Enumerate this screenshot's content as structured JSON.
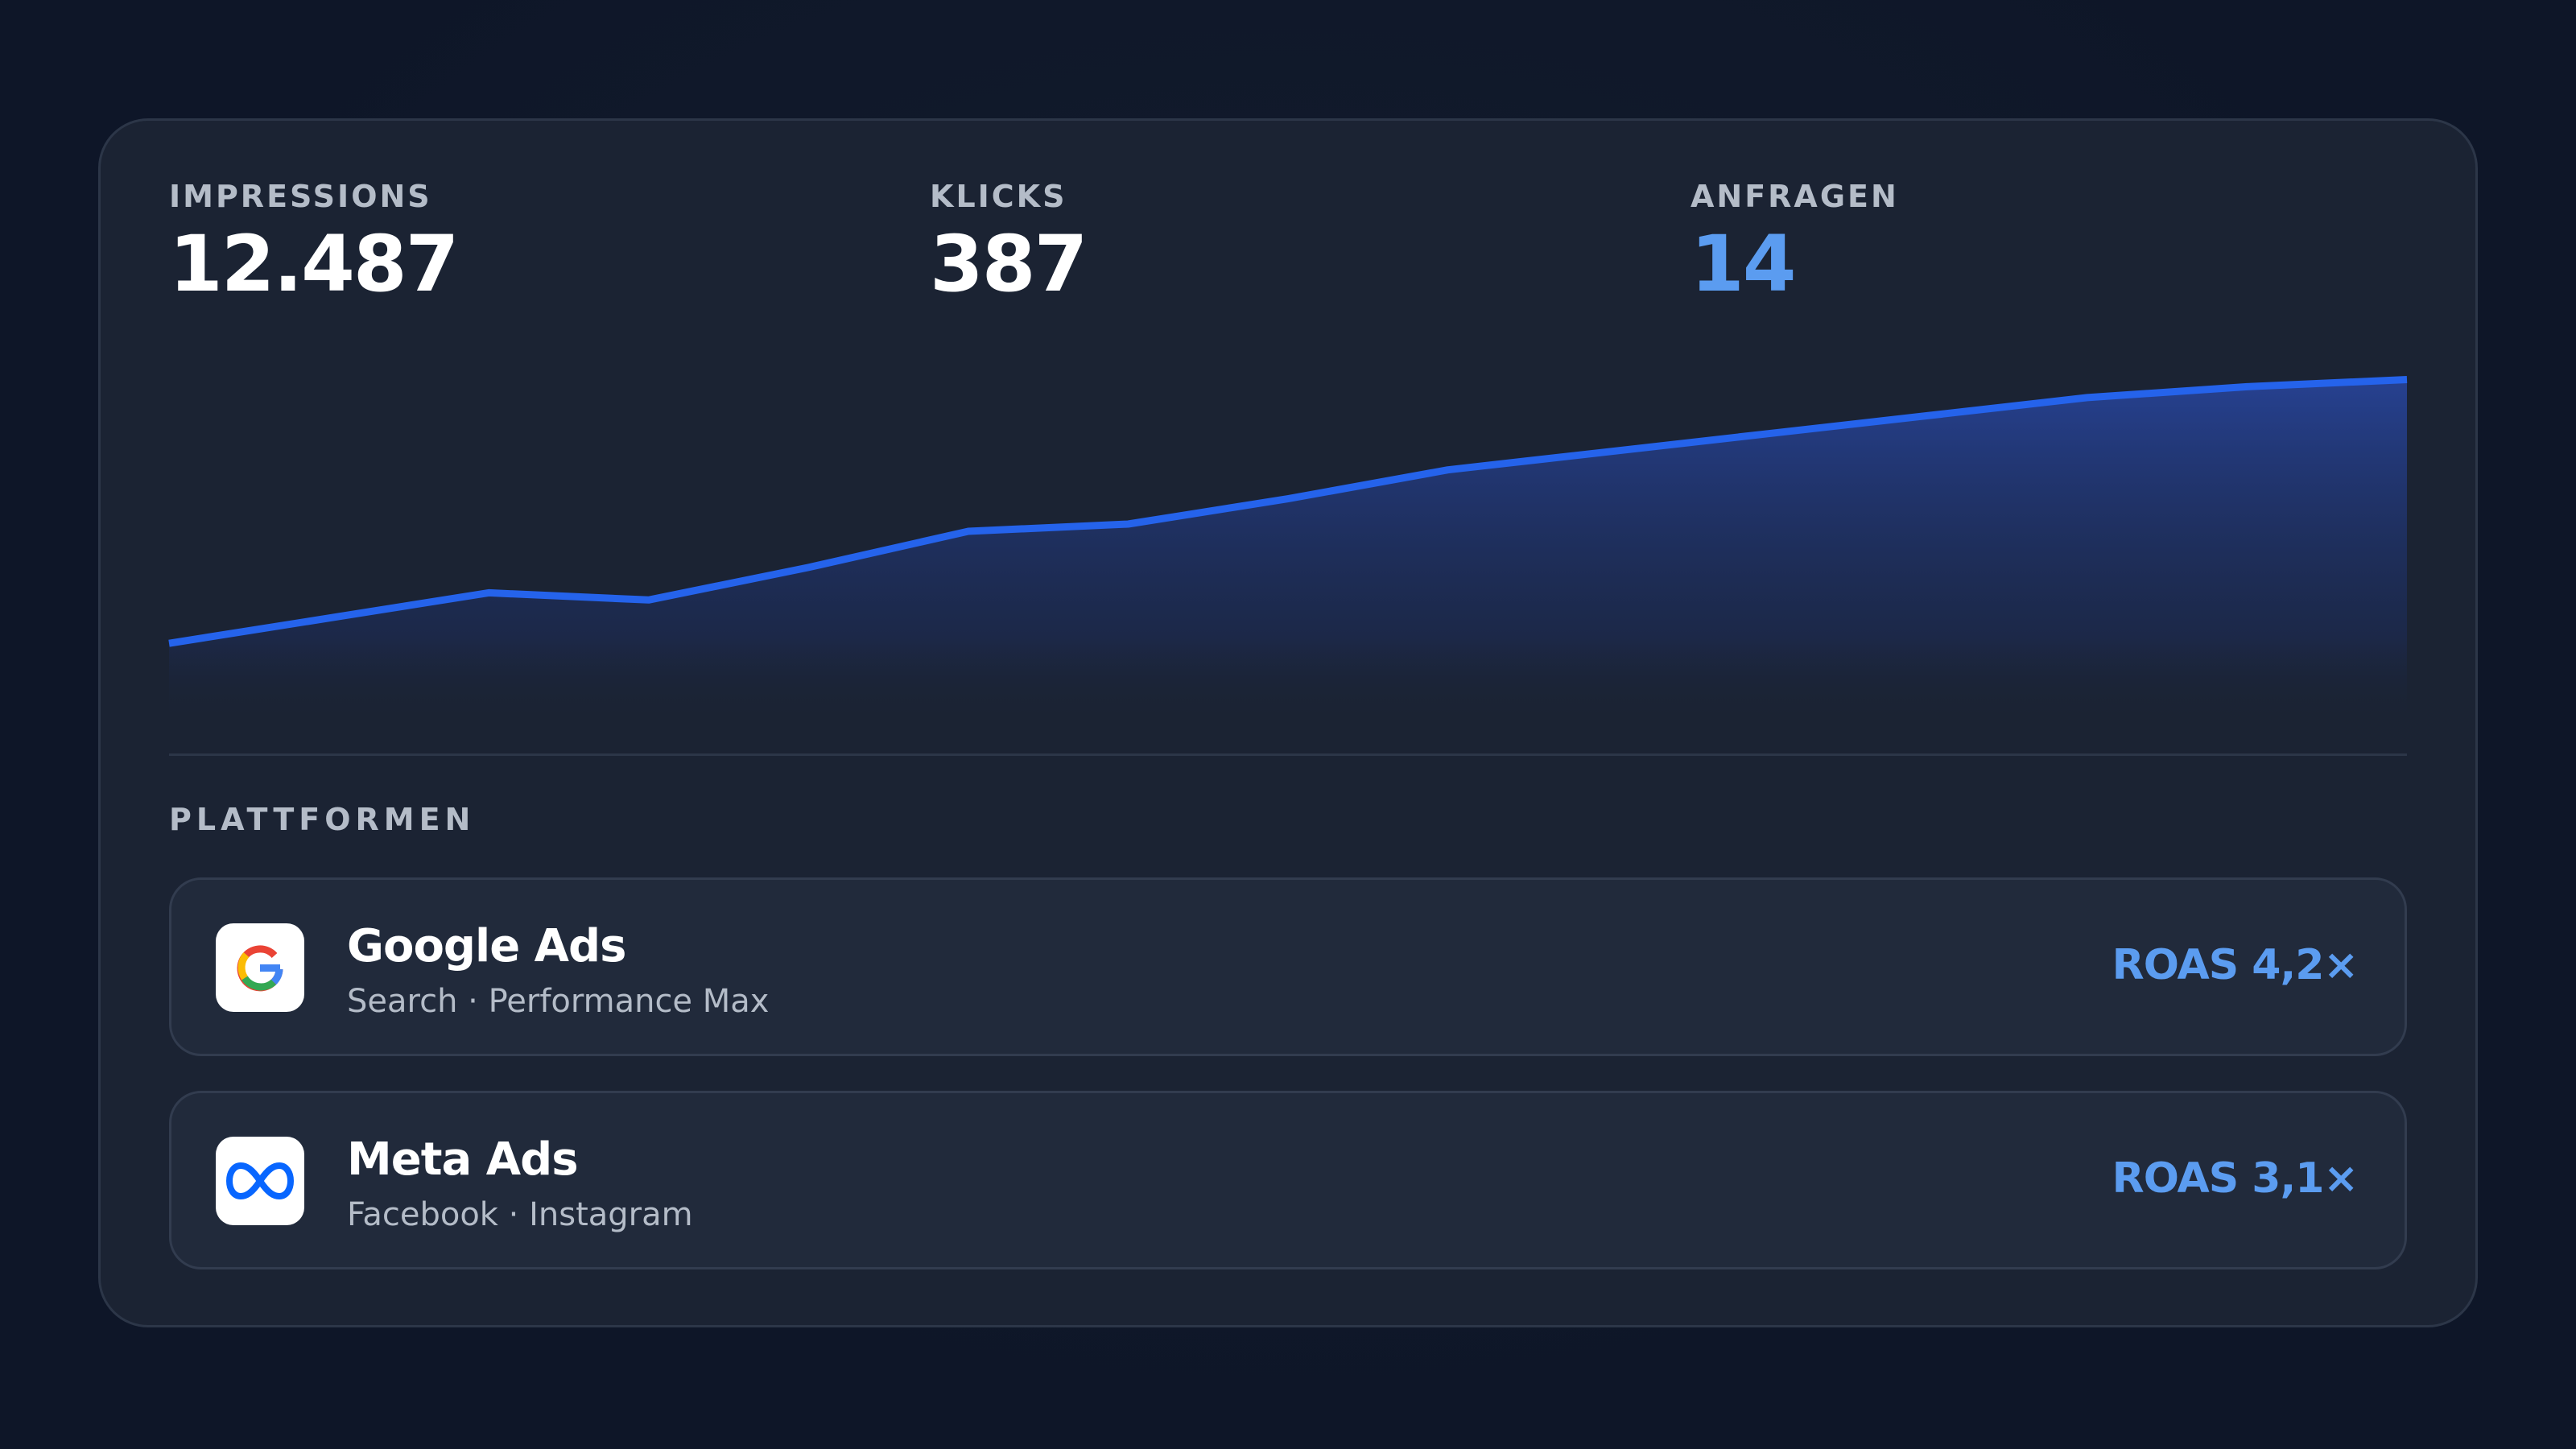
{
  "stats": [
    {
      "label": "IMPRESSIONS",
      "value": "12.487"
    },
    {
      "label": "KLICKS",
      "value": "387"
    },
    {
      "label": "ANFRAGEN",
      "value": "14"
    }
  ],
  "chart_data": {
    "type": "area",
    "color": "#2563eb",
    "values": [
      22,
      29,
      36,
      34,
      43,
      53,
      55,
      62,
      70,
      75,
      80,
      85,
      90,
      93,
      95
    ],
    "ylim": [
      0,
      100
    ]
  },
  "platforms": {
    "title": "PLATTFORMEN",
    "items": [
      {
        "name": "Google Ads",
        "detail": "Search · Performance Max",
        "roas": "ROAS 4,2×"
      },
      {
        "name": "Meta Ads",
        "detail": "Facebook · Instagram",
        "roas": "ROAS 3,1×"
      }
    ]
  }
}
